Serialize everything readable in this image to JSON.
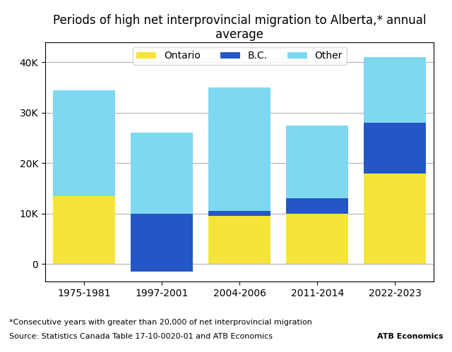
{
  "chart_data": {
    "type": "bar",
    "title": "Periods of high net interprovincial migration to Alberta,* annual average",
    "categories": [
      "1975-1981",
      "1997-2001",
      "2004-2006",
      "2011-2014",
      "2022-2023"
    ],
    "series": [
      {
        "name": "Ontario",
        "color": "#F5E53B",
        "values": [
          15500,
          -1500,
          9500,
          10000,
          18000
        ]
      },
      {
        "name": "B.C.",
        "color": "#2457C5",
        "values": [
          -2000,
          11500,
          1000,
          3000,
          10000
        ]
      },
      {
        "name": "Other",
        "color": "#7DD8F0",
        "values": [
          21000,
          16000,
          24500,
          14500,
          13000
        ]
      }
    ],
    "stacked": true,
    "ylim": [
      -3500,
      44000
    ],
    "yticks": [
      0,
      {
        "value": 10000,
        "label": "10K"
      },
      {
        "value": 20000,
        "label": "20K"
      },
      {
        "value": 30000,
        "label": "30K"
      },
      {
        "value": 40000,
        "label": "40K"
      }
    ],
    "grid": true,
    "legend": "upper center",
    "annotations": [
      "*Consecutive years with greater than 20,000 of net interprovincial migration",
      "Source: Statistics Canada Table 17-10-0020-01 and ATB Economics",
      "ATB Economics"
    ]
  }
}
